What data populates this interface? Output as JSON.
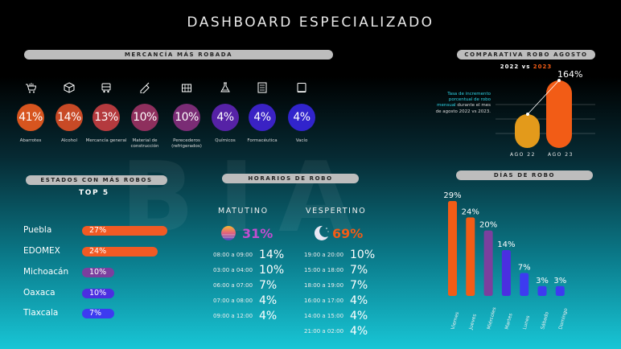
{
  "title": "DASHBOARD ESPECIALIZADO",
  "watermark": "BIA",
  "merchandise": {
    "header": "MERCANCÍA MÁS ROBADA",
    "items": [
      {
        "icon": "grocery-cart-icon",
        "value": "41%",
        "label": "Abarrotes",
        "color": "#d7551f"
      },
      {
        "icon": "box-icon",
        "value": "14%",
        "label": "Alcohol",
        "color": "#c84a26"
      },
      {
        "icon": "cart-icon",
        "value": "13%",
        "label": "Mercancía general",
        "color": "#b43a3e"
      },
      {
        "icon": "trowel-icon",
        "value": "10%",
        "label": "Material de construcción",
        "color": "#8e2f5d"
      },
      {
        "icon": "crate-icon",
        "value": "10%",
        "label": "Perecederos (refrigerados)",
        "color": "#7a2c75"
      },
      {
        "icon": "flask-icon",
        "value": "4%",
        "label": "Químicos",
        "color": "#5622a6"
      },
      {
        "icon": "pharmacy-icon",
        "value": "4%",
        "label": "Formacéutica",
        "color": "#3a22c4"
      },
      {
        "icon": "empty-box-icon",
        "value": "4%",
        "label": "Vacío",
        "color": "#3124cc"
      }
    ]
  },
  "comparison": {
    "header": "COMPARATIVA ROBO AGOSTO",
    "year_a": "2022",
    "vs": "vs",
    "year_b": "2023",
    "note_highlight": "Tasa de incremento porcentual de robo mensual",
    "note_rest": "durante el mes de agosto 2022 vs 2023.",
    "value_label": "164%",
    "value": 164,
    "bars": [
      {
        "label": "AGO 22",
        "color": "#e39a1b"
      },
      {
        "label": "AGO 23",
        "color": "#f25c16"
      }
    ]
  },
  "states": {
    "header": "ESTADOS CON MÁS ROBOS",
    "subheader": "TOP 5",
    "items": [
      {
        "name": "Puebla",
        "value": "27%",
        "pct": 27,
        "color": "#f15a24"
      },
      {
        "name": "EDOMEX",
        "value": "24%",
        "pct": 24,
        "color": "#f15a24"
      },
      {
        "name": "Michoacán",
        "value": "10%",
        "pct": 10,
        "color": "#7b3f9e"
      },
      {
        "name": "Oaxaca",
        "value": "10%",
        "pct": 10,
        "color": "#4b2fe0"
      },
      {
        "name": "Tlaxcala",
        "value": "7%",
        "pct": 7,
        "color": "#3d3bf0"
      }
    ]
  },
  "schedule": {
    "header": "HORARIOS DE ROBO",
    "morning": {
      "title": "MATUTINO",
      "total": "31%",
      "icon": "sunrise-icon",
      "rows": [
        {
          "time": "08:00 a 09:00",
          "value": "14%"
        },
        {
          "time": "03:00 a 04:00",
          "value": "10%"
        },
        {
          "time": "06:00 a 07:00",
          "value": "7%"
        },
        {
          "time": "07:00 a 08:00",
          "value": "4%"
        },
        {
          "time": "09:00 a 12:00",
          "value": "4%"
        }
      ]
    },
    "evening": {
      "title": "VESPERTINO",
      "total": "69%",
      "icon": "moon-icon",
      "rows": [
        {
          "time": "19:00 a 20:00",
          "value": "10%"
        },
        {
          "time": "15:00 a 18:00",
          "value": "7%"
        },
        {
          "time": "18:00 a 19:00",
          "value": "7%"
        },
        {
          "time": "16:00 a 17:00",
          "value": "4%"
        },
        {
          "time": "14:00 a 15:00",
          "value": "4%"
        },
        {
          "time": "21:00 a 02:00",
          "value": "4%"
        }
      ]
    }
  },
  "days": {
    "header": "DÍAS DE ROBO",
    "chart_data": {
      "type": "bar",
      "categories": [
        "Viernes",
        "Jueves",
        "Miércoles",
        "Martes",
        "Lunes",
        "Sábado",
        "Domingo"
      ],
      "values": [
        29,
        24,
        20,
        14,
        7,
        3,
        3
      ],
      "labels": [
        "29%",
        "24%",
        "20%",
        "14%",
        "7%",
        "3%",
        "3%"
      ],
      "colors": [
        "#f25c16",
        "#f25c16",
        "#7b3f9e",
        "#4b2fe0",
        "#3d3bf0",
        "#3d3bf0",
        "#3d3bf0"
      ]
    }
  }
}
